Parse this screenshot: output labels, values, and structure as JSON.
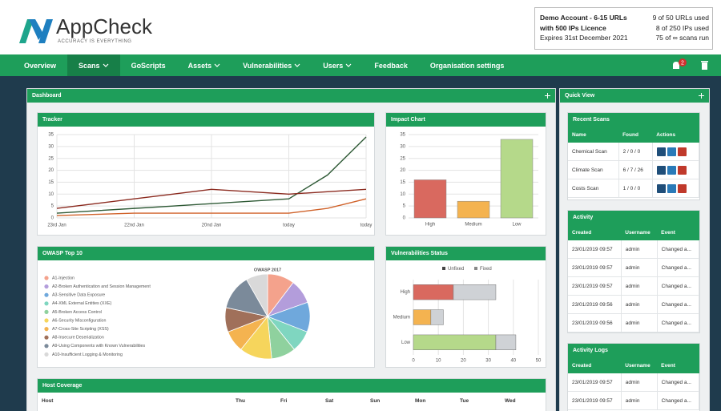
{
  "header": {
    "logo": "AppCheck",
    "tagline": "ACCURACY IS EVERYTHING"
  },
  "account": {
    "lines": [
      "Demo Account - 6-15 URLs",
      "with 500 IPs Licence",
      "Expires 31st December 2021"
    ],
    "usage": [
      "9 of 50 URLs used",
      "8 of 250 IPs used",
      "75 of ∞ scans run"
    ]
  },
  "nav": {
    "items": [
      "Overview",
      "Scans",
      "GoScripts",
      "Assets",
      "Vulnerabilities",
      "Users",
      "Feedback",
      "Organisation settings"
    ],
    "active": 1,
    "dropdowns": [
      1,
      3,
      4,
      5
    ],
    "notifications": 2
  },
  "dashboard": {
    "title": "Dashboard",
    "tracker": {
      "type": "line",
      "title": "Tracker",
      "categories": [
        "23rd Jan",
        null,
        "22nd Jan",
        null,
        "20nd Jan",
        null,
        "today",
        null,
        "today"
      ],
      "series": [
        {
          "color": "#2f5a36",
          "values": [
            2,
            3,
            4,
            5,
            6,
            7,
            8,
            18,
            34
          ]
        },
        {
          "color": "#8b2a1f",
          "values": [
            4,
            6,
            8,
            10,
            12,
            11,
            10,
            11,
            12
          ]
        },
        {
          "color": "#d0622a",
          "values": [
            1,
            1.5,
            2,
            2,
            2,
            2,
            2,
            4,
            8
          ]
        }
      ],
      "ylim": [
        0,
        35
      ],
      "yticks": [
        0,
        5,
        10,
        15,
        20,
        25,
        30,
        35
      ],
      "grid": true
    },
    "impact": {
      "type": "bar",
      "title": "Impact Chart",
      "categories": [
        "High",
        "Medium",
        "Low"
      ],
      "values": [
        16,
        7,
        33
      ],
      "colors": [
        "#d9695f",
        "#f4b350",
        "#b5d98a"
      ],
      "ylim": [
        0,
        35
      ],
      "yticks": [
        0,
        5,
        10,
        15,
        20,
        25,
        30,
        35
      ],
      "grid": true
    },
    "owasp": {
      "type": "pie",
      "title": "OWASP Top 10",
      "chart_title": "OWASP 2017",
      "categories": [
        "A1-Injection",
        "A2-Broken Authentication and Session Management",
        "A3-Sensitive Data Exposure",
        "A4-XML External Entities (XXE)",
        "A5-Broken Access Control",
        "A6-Security Misconfiguration",
        "A7-Cross-Site Scripting (XSS)",
        "A8-Insecure Deserialization",
        "A9-Using Components with Known Vulnerabilities",
        "A10-Insufficient Logging & Monitoring"
      ],
      "values": [
        10,
        9,
        11,
        8,
        9,
        12,
        8,
        9,
        13,
        8
      ],
      "colors": [
        "#f4a28c",
        "#b39ddb",
        "#6fa8dc",
        "#7fd6c0",
        "#8fd19e",
        "#f6d55c",
        "#f4b350",
        "#a0705a",
        "#7b8a9a",
        "#d9d9d9"
      ]
    },
    "vuln_status": {
      "type": "stacked-bar",
      "orientation": "horizontal",
      "title": "Vulnerabilities Status",
      "categories": [
        "High",
        "Medium",
        "Low"
      ],
      "series": [
        {
          "name": "Unfixed",
          "colors": [
            "#d9695f",
            "#f4b350",
            "#b5d98a"
          ],
          "values": [
            16,
            7,
            33
          ]
        },
        {
          "name": "Fixed",
          "color": "#cfd2d6",
          "values": [
            17,
            5,
            8
          ]
        }
      ],
      "xlim": [
        0,
        50
      ],
      "xticks": [
        0,
        10,
        20,
        30,
        40,
        50
      ],
      "grid": true
    },
    "host_coverage": {
      "title": "Host Coverage",
      "columns": [
        "Host",
        "Thu",
        "Fri",
        "Sat",
        "Sun",
        "Mon",
        "Tue",
        "Wed"
      ]
    }
  },
  "quick_view": {
    "title": "Quick View",
    "recent_scans": {
      "title": "Recent Scans",
      "columns": [
        "Name",
        "Found",
        "Actions"
      ],
      "rows": [
        [
          "Chemical Scan",
          "2 / 0 / 0"
        ],
        [
          "Climate Scan",
          "6 / 7 / 26"
        ],
        [
          "Costs Scan",
          "1 / 0 / 0"
        ]
      ]
    },
    "activity": {
      "title": "Activity",
      "columns": [
        "Created",
        "Username",
        "Event"
      ],
      "rows": [
        [
          "23/01/2019 09:57",
          "admin",
          "Changed a..."
        ],
        [
          "23/01/2019 09:57",
          "admin",
          "Changed a..."
        ],
        [
          "23/01/2019 09:57",
          "admin",
          "Changed a..."
        ],
        [
          "23/01/2019 09:56",
          "admin",
          "Changed a..."
        ],
        [
          "23/01/2019 09:56",
          "admin",
          "Changed a..."
        ]
      ]
    },
    "activity_logs": {
      "title": "Activity Logs",
      "columns": [
        "Created",
        "Username",
        "Event"
      ],
      "rows": [
        [
          "23/01/2019 09:57",
          "admin",
          "Changed a..."
        ],
        [
          "23/01/2019 09:57",
          "admin",
          "Changed a..."
        ]
      ]
    }
  }
}
